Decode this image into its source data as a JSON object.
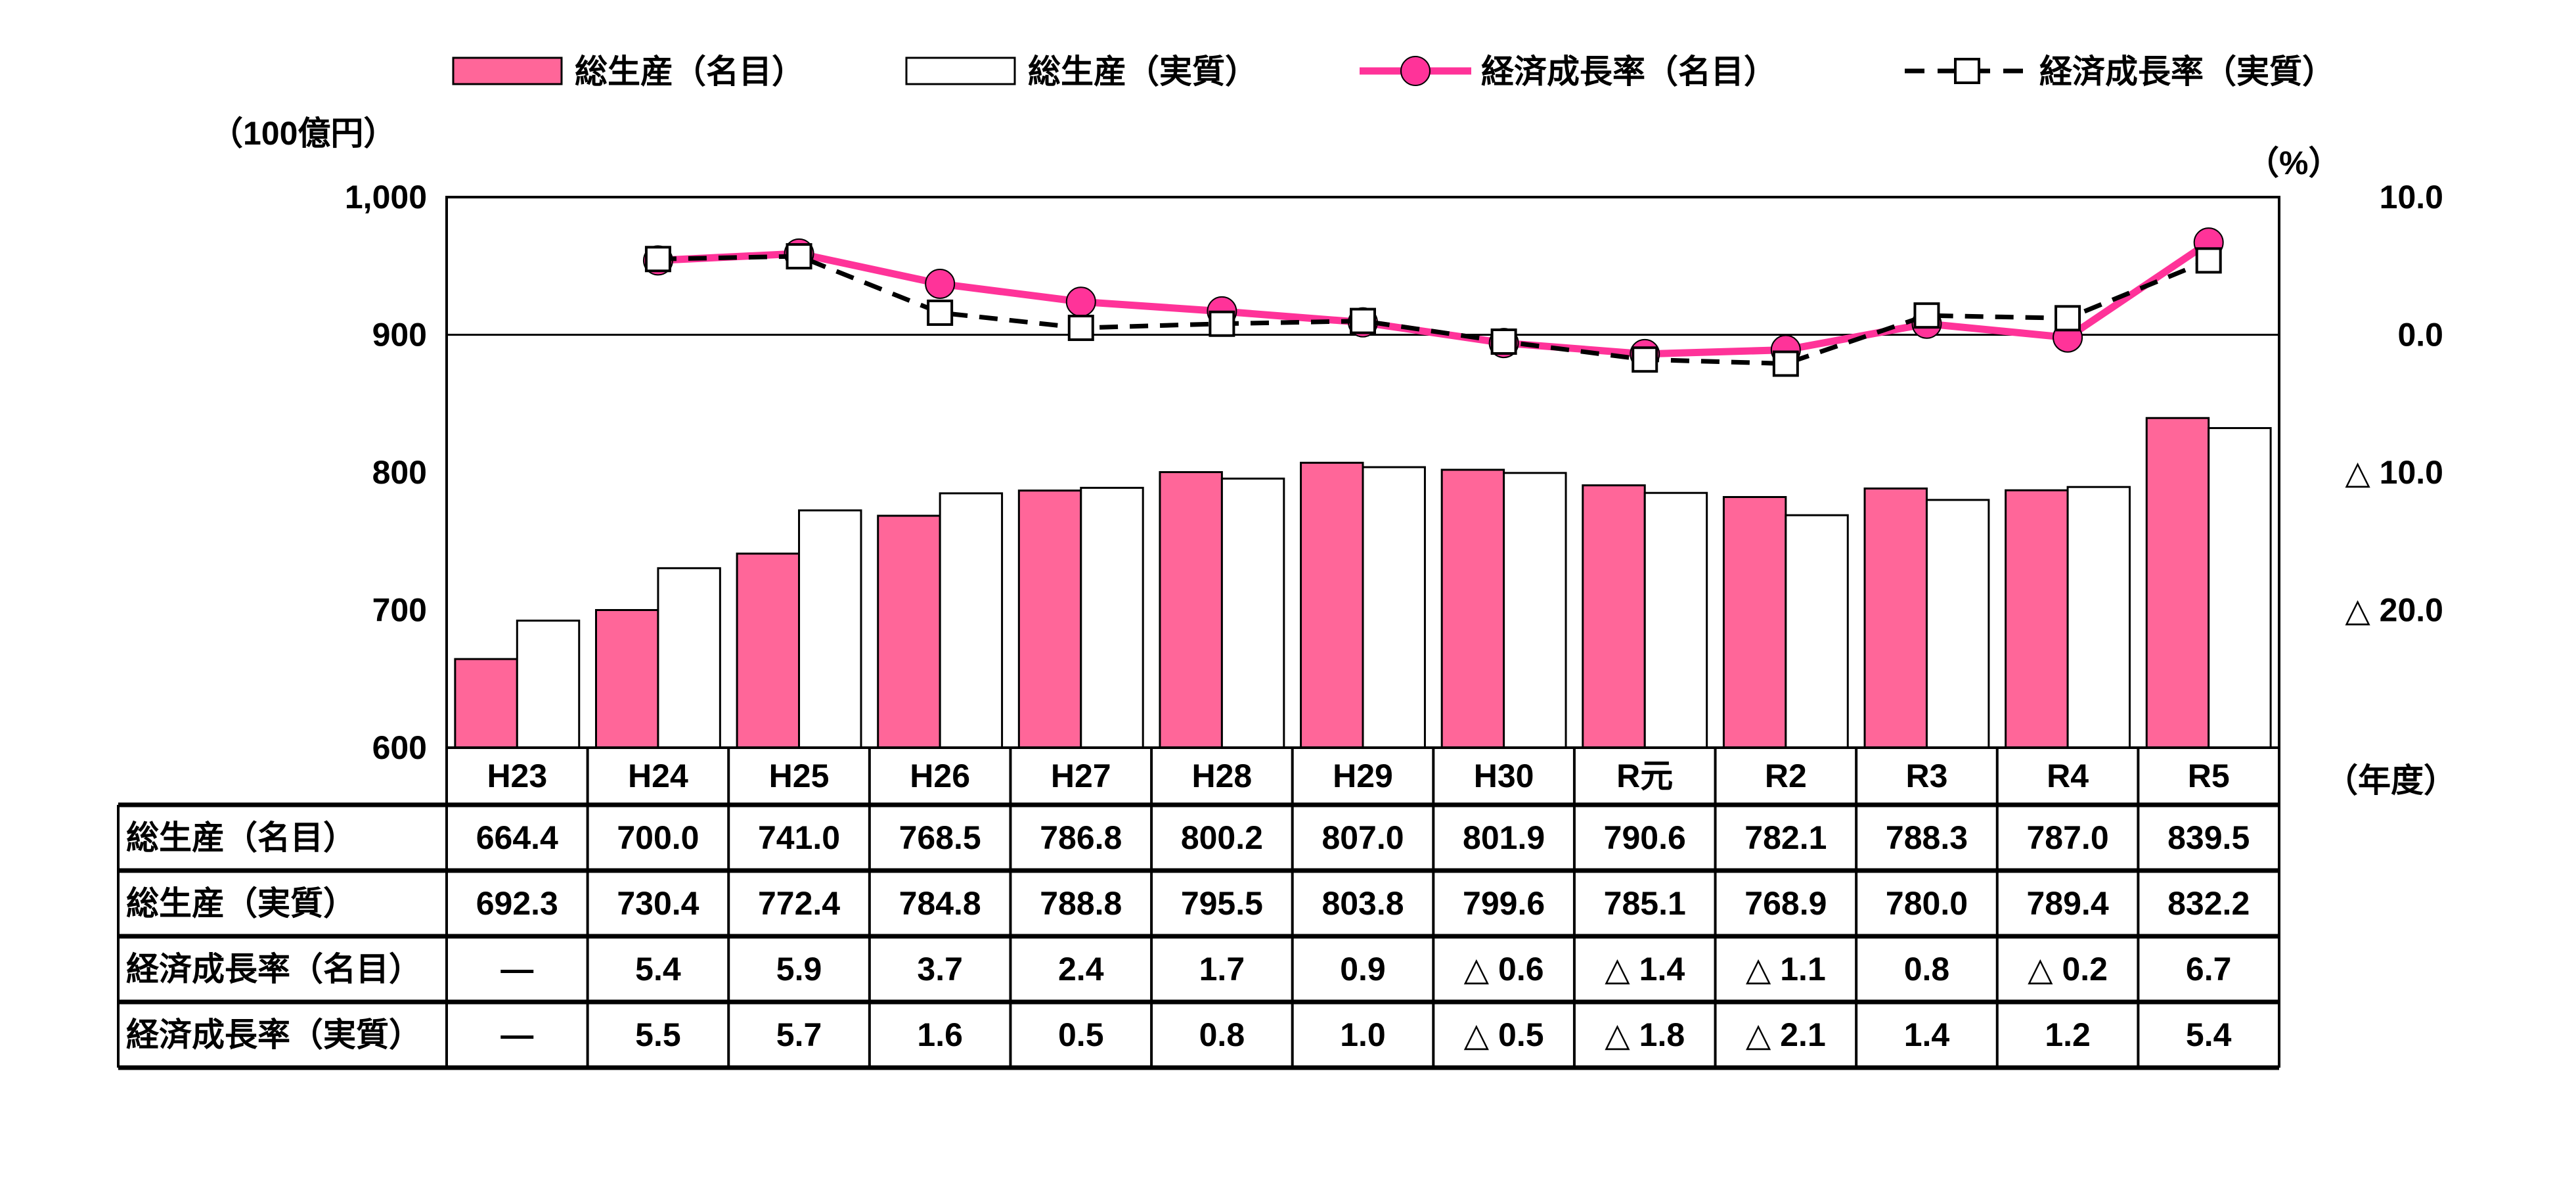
{
  "chart_data": {
    "type": "bar+line",
    "categories": [
      "H23",
      "H24",
      "H25",
      "H26",
      "H27",
      "H28",
      "H29",
      "H30",
      "R元",
      "R2",
      "R3",
      "R4",
      "R5"
    ],
    "left_axis": {
      "unit_label": "（100億円）",
      "ylim": [
        600,
        1000
      ],
      "ticks": [
        "600",
        "700",
        "800",
        "900",
        "1,000"
      ],
      "tick_values": [
        600,
        700,
        800,
        900,
        1000
      ]
    },
    "right_axis": {
      "unit_label": "（%）",
      "ylim": [
        -30,
        10
      ],
      "ticks": [
        "10.0",
        "0.0",
        "△ 10.0",
        "△ 20.0"
      ],
      "tick_values": [
        10,
        0,
        -10,
        -20
      ]
    },
    "x_unit_label": "（年度）",
    "legend_position": "top",
    "series": [
      {
        "name": "総生産（名目）",
        "kind": "bar",
        "axis": "left",
        "color": "#ff6699",
        "values": [
          664.4,
          700.0,
          741.0,
          768.5,
          786.8,
          800.2,
          807.0,
          801.9,
          790.6,
          782.1,
          788.3,
          787.0,
          839.5
        ]
      },
      {
        "name": "総生産（実質）",
        "kind": "bar",
        "axis": "left",
        "color": "#ffffff",
        "values": [
          692.3,
          730.4,
          772.4,
          784.8,
          788.8,
          795.5,
          803.8,
          799.6,
          785.1,
          768.9,
          780.0,
          789.4,
          832.2
        ]
      },
      {
        "name": "経済成長率（名目）",
        "kind": "line",
        "axis": "right",
        "color": "#ff3399",
        "marker": "circle",
        "values": [
          null,
          5.4,
          5.9,
          3.7,
          2.4,
          1.7,
          0.9,
          -0.6,
          -1.4,
          -1.1,
          0.8,
          -0.2,
          6.7
        ]
      },
      {
        "name": "経済成長率（実質）",
        "kind": "line",
        "axis": "right",
        "color": "#000000",
        "dashed": true,
        "marker": "square",
        "values": [
          null,
          5.5,
          5.7,
          1.6,
          0.5,
          0.8,
          1.0,
          -0.5,
          -1.8,
          -2.1,
          1.4,
          1.2,
          5.4
        ]
      }
    ],
    "table": {
      "rows": [
        {
          "label": "総生産（名目）",
          "cells": [
            "664.4",
            "700.0",
            "741.0",
            "768.5",
            "786.8",
            "800.2",
            "807.0",
            "801.9",
            "790.6",
            "782.1",
            "788.3",
            "787.0",
            "839.5"
          ]
        },
        {
          "label": "総生産（実質）",
          "cells": [
            "692.3",
            "730.4",
            "772.4",
            "784.8",
            "788.8",
            "795.5",
            "803.8",
            "799.6",
            "785.1",
            "768.9",
            "780.0",
            "789.4",
            "832.2"
          ]
        },
        {
          "label": "経済成長率（名目）",
          "cells": [
            "—",
            "5.4",
            "5.9",
            "3.7",
            "2.4",
            "1.7",
            "0.9",
            "△ 0.6",
            "△ 1.4",
            "△ 1.1",
            "0.8",
            "△ 0.2",
            "6.7"
          ]
        },
        {
          "label": "経済成長率（実質）",
          "cells": [
            "—",
            "5.5",
            "5.7",
            "1.6",
            "0.5",
            "0.8",
            "1.0",
            "△ 0.5",
            "△ 1.8",
            "△ 2.1",
            "1.4",
            "1.2",
            "5.4"
          ]
        }
      ]
    }
  }
}
